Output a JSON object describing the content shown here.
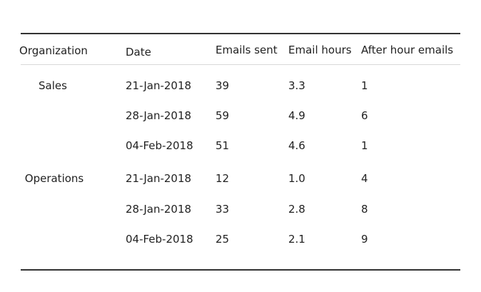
{
  "table": {
    "headers": [
      "Organization",
      "Date",
      "Emails sent",
      "Email hours",
      "After hour emails"
    ],
    "groups": [
      {
        "organization": "Sales",
        "rows": [
          {
            "date": "21-Jan-2018",
            "emails_sent": "39",
            "email_hours": "3.3",
            "after_hour_emails": "1"
          },
          {
            "date": "28-Jan-2018",
            "emails_sent": "59",
            "email_hours": "4.9",
            "after_hour_emails": "6"
          },
          {
            "date": "04-Feb-2018",
            "emails_sent": "51",
            "email_hours": "4.6",
            "after_hour_emails": "1"
          }
        ]
      },
      {
        "organization": "Operations",
        "rows": [
          {
            "date": "21-Jan-2018",
            "emails_sent": "12",
            "email_hours": "1.0",
            "after_hour_emails": "4"
          },
          {
            "date": "28-Jan-2018",
            "emails_sent": "33",
            "email_hours": "2.8",
            "after_hour_emails": "8"
          },
          {
            "date": "04-Feb-2018",
            "emails_sent": "25",
            "email_hours": "2.1",
            "after_hour_emails": "9"
          }
        ]
      }
    ]
  }
}
